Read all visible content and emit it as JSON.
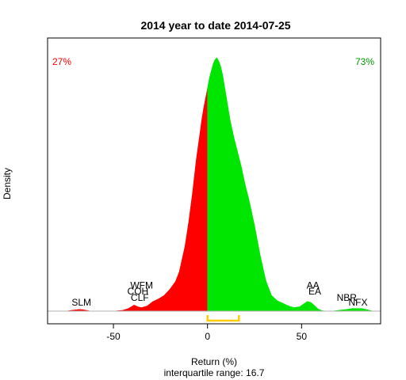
{
  "chart_data": {
    "type": "area",
    "title": "2014  year to date 2014-07-25",
    "xlabel": "Return (%)",
    "subtitle": "interquartile range: 16.7",
    "ylabel": "Density",
    "xlim": [
      -85,
      92
    ],
    "ylim": [
      0,
      0.03
    ],
    "x_ticks": [
      -50,
      0,
      50
    ],
    "x_tick_labels": [
      "-50",
      "0",
      "50"
    ],
    "split_at": 0,
    "negative_share_label": "27%",
    "positive_share_label": "73%",
    "colors": {
      "negative": "#ff0000",
      "positive": "#00e600",
      "baseline": "#b0b0b0",
      "iqr_bracket": "#ffcc00",
      "negative_label": "#ff0000",
      "positive_label": "#009900"
    },
    "iqr": [
      0,
      16.7
    ],
    "density": {
      "x": [
        -82,
        -75,
        -72,
        -68,
        -66,
        -62,
        -55,
        -50,
        -45,
        -42,
        -39,
        -37,
        -35,
        -32,
        -29,
        -26,
        -23,
        -20,
        -17,
        -15,
        -12,
        -10,
        -8,
        -6,
        -4,
        -3,
        -2,
        0,
        1,
        2,
        3,
        4,
        5,
        6,
        7,
        8,
        10,
        12,
        14,
        16,
        18,
        20,
        22,
        25,
        28,
        31,
        34,
        37,
        40,
        43,
        46,
        49,
        51,
        53,
        55,
        57,
        59,
        61,
        63,
        66,
        70,
        74,
        77,
        80,
        82,
        84,
        86,
        88,
        90
      ],
      "y": [
        0,
        0,
        0.0001,
        0.0002,
        0.00015,
        0,
        0,
        0,
        0.0001,
        0.0003,
        0.0007,
        0.0005,
        0.0004,
        0.0006,
        0.0011,
        0.0014,
        0.0018,
        0.0025,
        0.0034,
        0.0045,
        0.0074,
        0.0102,
        0.0135,
        0.0173,
        0.0204,
        0.022,
        0.0233,
        0.0255,
        0.0267,
        0.0275,
        0.0283,
        0.0288,
        0.029,
        0.0286,
        0.028,
        0.0271,
        0.0245,
        0.0219,
        0.0199,
        0.0182,
        0.0165,
        0.0145,
        0.0128,
        0.0098,
        0.0064,
        0.0035,
        0.0018,
        0.0012,
        0.0009,
        0.0006,
        0.0004,
        0.0005,
        0.0008,
        0.0011,
        0.001,
        0.0006,
        0.0002,
        5e-05,
        0,
        0,
        0.0001,
        0.0002,
        0.0003,
        0.0003,
        0.0003,
        0.0002,
        0.0001,
        0,
        0
      ]
    },
    "annotations": [
      {
        "text": "SLM",
        "x": -67,
        "y": 0.00062
      },
      {
        "text": "WFM",
        "x": -35,
        "y": 0.0026
      },
      {
        "text": "COH",
        "x": -37,
        "y": 0.0019
      },
      {
        "text": "CLF",
        "x": -36,
        "y": 0.0012
      },
      {
        "text": "AA",
        "x": 56,
        "y": 0.0026
      },
      {
        "text": "EA",
        "x": 57,
        "y": 0.0019
      },
      {
        "text": "NBR",
        "x": 74,
        "y": 0.0012
      },
      {
        "text": "NFX",
        "x": 80,
        "y": 0.00062
      }
    ]
  }
}
